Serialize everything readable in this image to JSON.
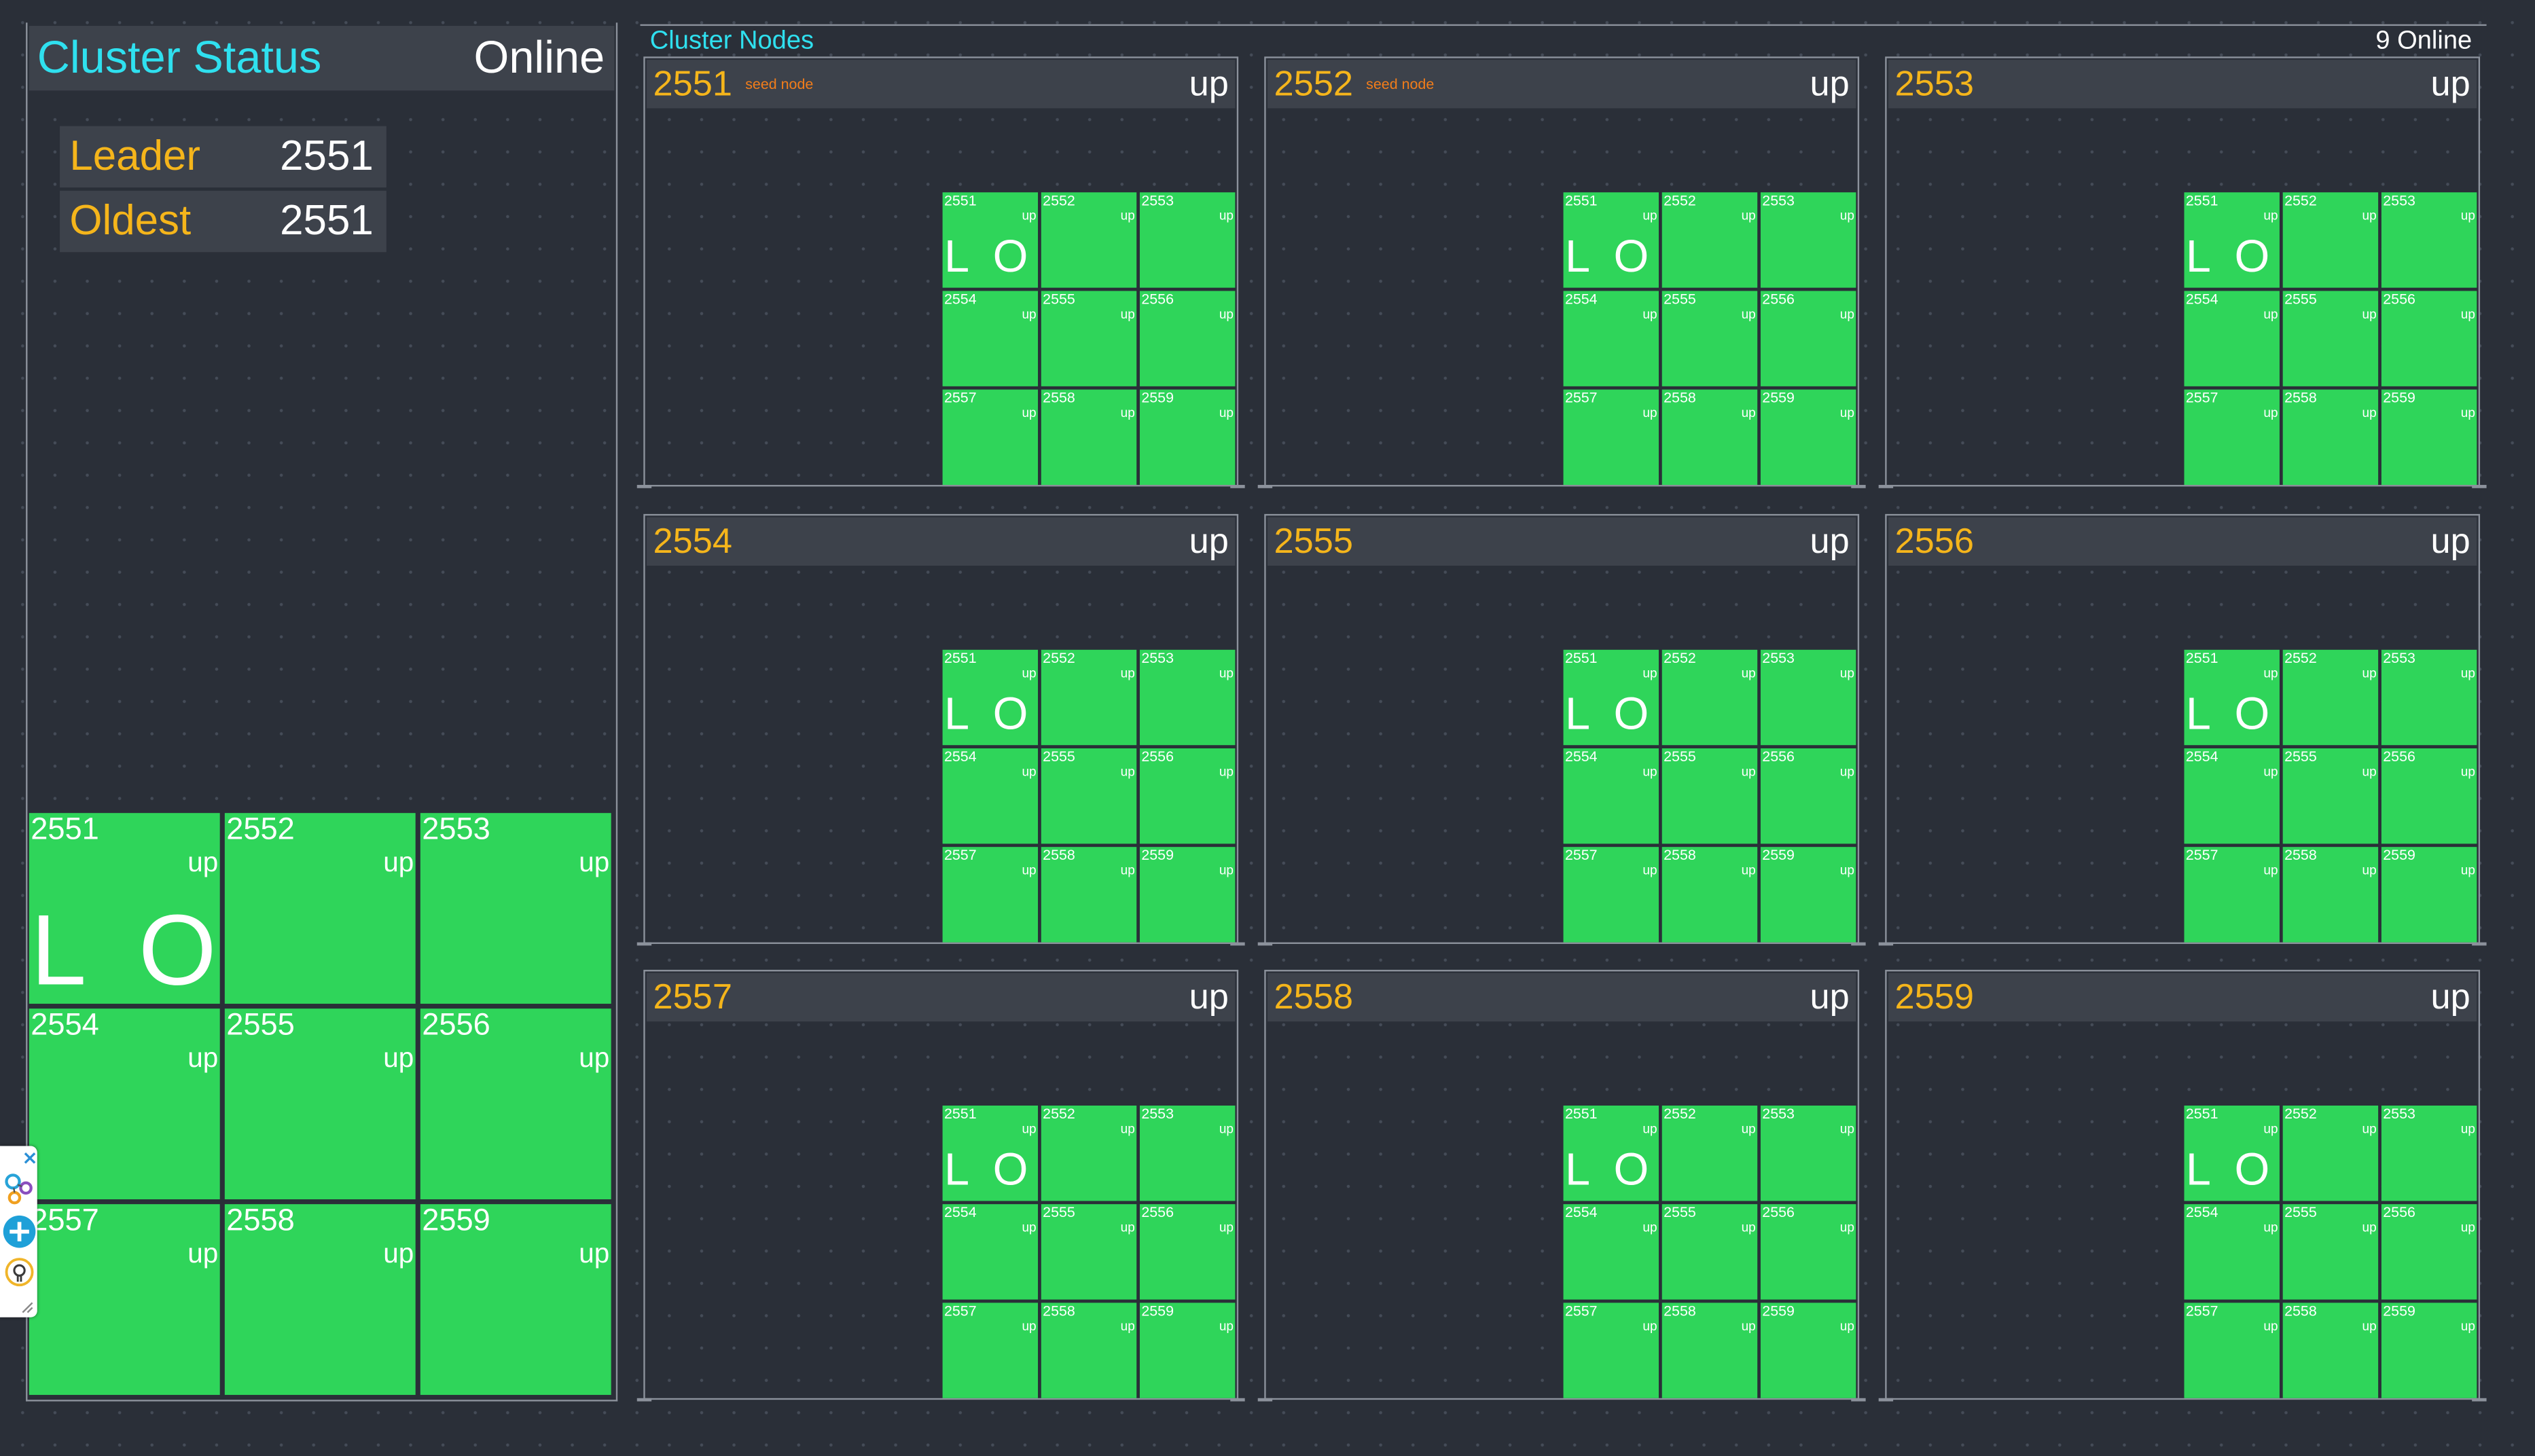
{
  "cluster_status": {
    "title": "Cluster Status",
    "state": "Online",
    "leader_label": "Leader",
    "leader_value": "2551",
    "oldest_label": "Oldest",
    "oldest_value": "2551"
  },
  "cluster_nodes": {
    "title": "Cluster Nodes",
    "online_count": "9 Online"
  },
  "marker_leader": "L",
  "marker_oldest": "O",
  "member_state": "up",
  "members": [
    "2551",
    "2552",
    "2553",
    "2554",
    "2555",
    "2556",
    "2557",
    "2558",
    "2559"
  ],
  "nodes": [
    {
      "port": "2551",
      "label": "seed node",
      "state": "up"
    },
    {
      "port": "2552",
      "label": "seed node",
      "state": "up"
    },
    {
      "port": "2553",
      "label": "",
      "state": "up"
    },
    {
      "port": "2554",
      "label": "",
      "state": "up"
    },
    {
      "port": "2555",
      "label": "",
      "state": "up"
    },
    {
      "port": "2556",
      "label": "",
      "state": "up"
    },
    {
      "port": "2557",
      "label": "",
      "state": "up"
    },
    {
      "port": "2558",
      "label": "",
      "state": "up"
    },
    {
      "port": "2559",
      "label": "",
      "state": "up"
    }
  ],
  "toolbox": {
    "icons": [
      "close-icon",
      "graph-icon",
      "plus-icon",
      "bulb-icon",
      "resize-icon"
    ]
  },
  "colors": {
    "background": "#2a2f38",
    "member_up": "#2fd55a",
    "title_cyan": "#2fe0ef",
    "port_orange": "#f5b51b",
    "seed_orange": "#f27d1a"
  }
}
